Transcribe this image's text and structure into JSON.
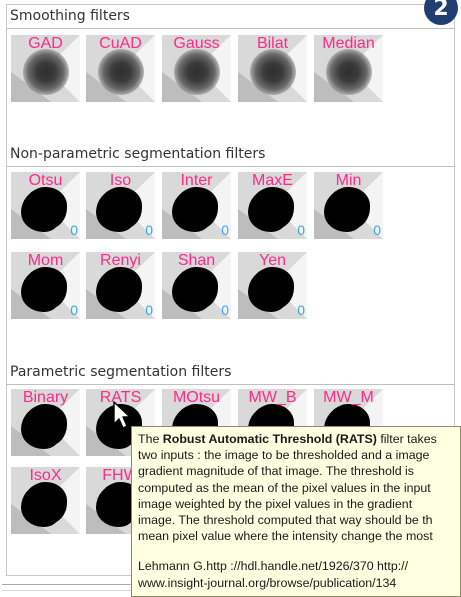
{
  "badge": "2",
  "sections": {
    "smoothing": {
      "title": "Smoothing filters",
      "filters": [
        {
          "label": "GAD"
        },
        {
          "label": "CuAD"
        },
        {
          "label": "Gauss"
        },
        {
          "label": "Bilat"
        },
        {
          "label": "Median"
        }
      ]
    },
    "nonparametric": {
      "title": "Non-parametric segmentation filters",
      "filters": [
        {
          "label": "Otsu",
          "count": "0"
        },
        {
          "label": "Iso",
          "count": "0"
        },
        {
          "label": "Inter",
          "count": "0"
        },
        {
          "label": "MaxE",
          "count": "0"
        },
        {
          "label": "Min",
          "count": "0"
        },
        {
          "label": "Mom",
          "count": "0"
        },
        {
          "label": "Renyi",
          "count": "0"
        },
        {
          "label": "Shan",
          "count": "0"
        },
        {
          "label": "Yen",
          "count": "0"
        }
      ]
    },
    "parametric": {
      "title": "Parametric segmentation filters",
      "filters": [
        {
          "label": "Binary"
        },
        {
          "label": "RATS"
        },
        {
          "label": "MOtsu"
        },
        {
          "label": "MW_B"
        },
        {
          "label": "MW_M"
        },
        {
          "label": "IsoX"
        },
        {
          "label": "FHW"
        }
      ]
    }
  },
  "tooltip": {
    "line1_pre": "The ",
    "line1_bold": "Robust Automatic Threshold (RATS)",
    "line1_post": " filter takes",
    "lines": [
      "two inputs : the image to be thresholded and a image",
      "gradient magnitude of that image. The threshold is",
      "computed as the mean of the pixel values in the input",
      "image weighted by the pixel values in the gradient",
      "image. The threshold computed that way should be th",
      "mean pixel value where the intensity change the most"
    ],
    "ref_lines": [
      "Lehmann G.http ://hdl.handle.net/1926/370 http://",
      "www.insight-journal.org/browse/publication/134"
    ]
  }
}
